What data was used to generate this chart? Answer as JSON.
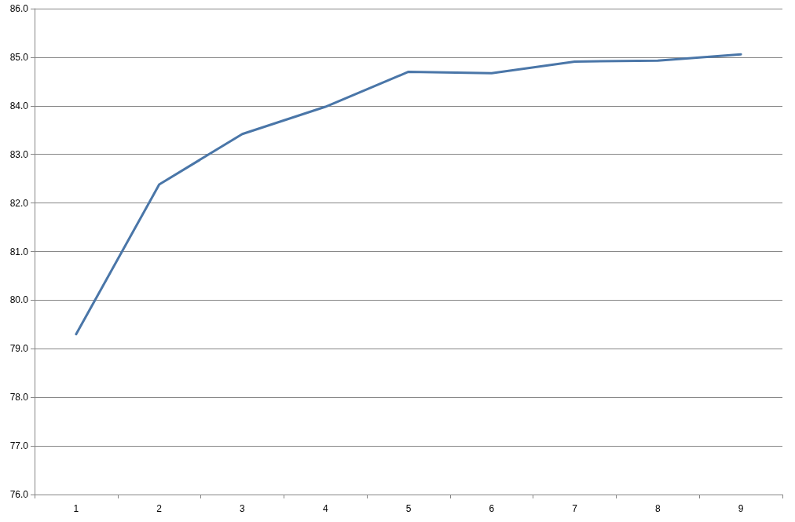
{
  "chart_data": {
    "type": "line",
    "categories": [
      "1",
      "2",
      "3",
      "4",
      "5",
      "6",
      "7",
      "8",
      "9"
    ],
    "series": [
      {
        "color": "#4a76a8",
        "values": [
          79.3,
          82.38,
          83.42,
          83.98,
          84.7,
          84.67,
          84.91,
          84.93,
          85.06
        ]
      }
    ],
    "ylim": [
      76,
      86
    ],
    "yticks": [
      {
        "value": 76,
        "label": "76.0"
      },
      {
        "value": 77,
        "label": "77.0"
      },
      {
        "value": 78,
        "label": "78.0"
      },
      {
        "value": 79,
        "label": "79.0"
      },
      {
        "value": 80,
        "label": "80.0"
      },
      {
        "value": 81,
        "label": "81.0"
      },
      {
        "value": 82,
        "label": "82.0"
      },
      {
        "value": 83,
        "label": "83.0"
      },
      {
        "value": 84,
        "label": "84.0"
      },
      {
        "value": 85,
        "label": "85.0"
      },
      {
        "value": 86,
        "label": "86.0"
      }
    ],
    "grid": "y",
    "marker": "none",
    "line_style": "solid"
  }
}
